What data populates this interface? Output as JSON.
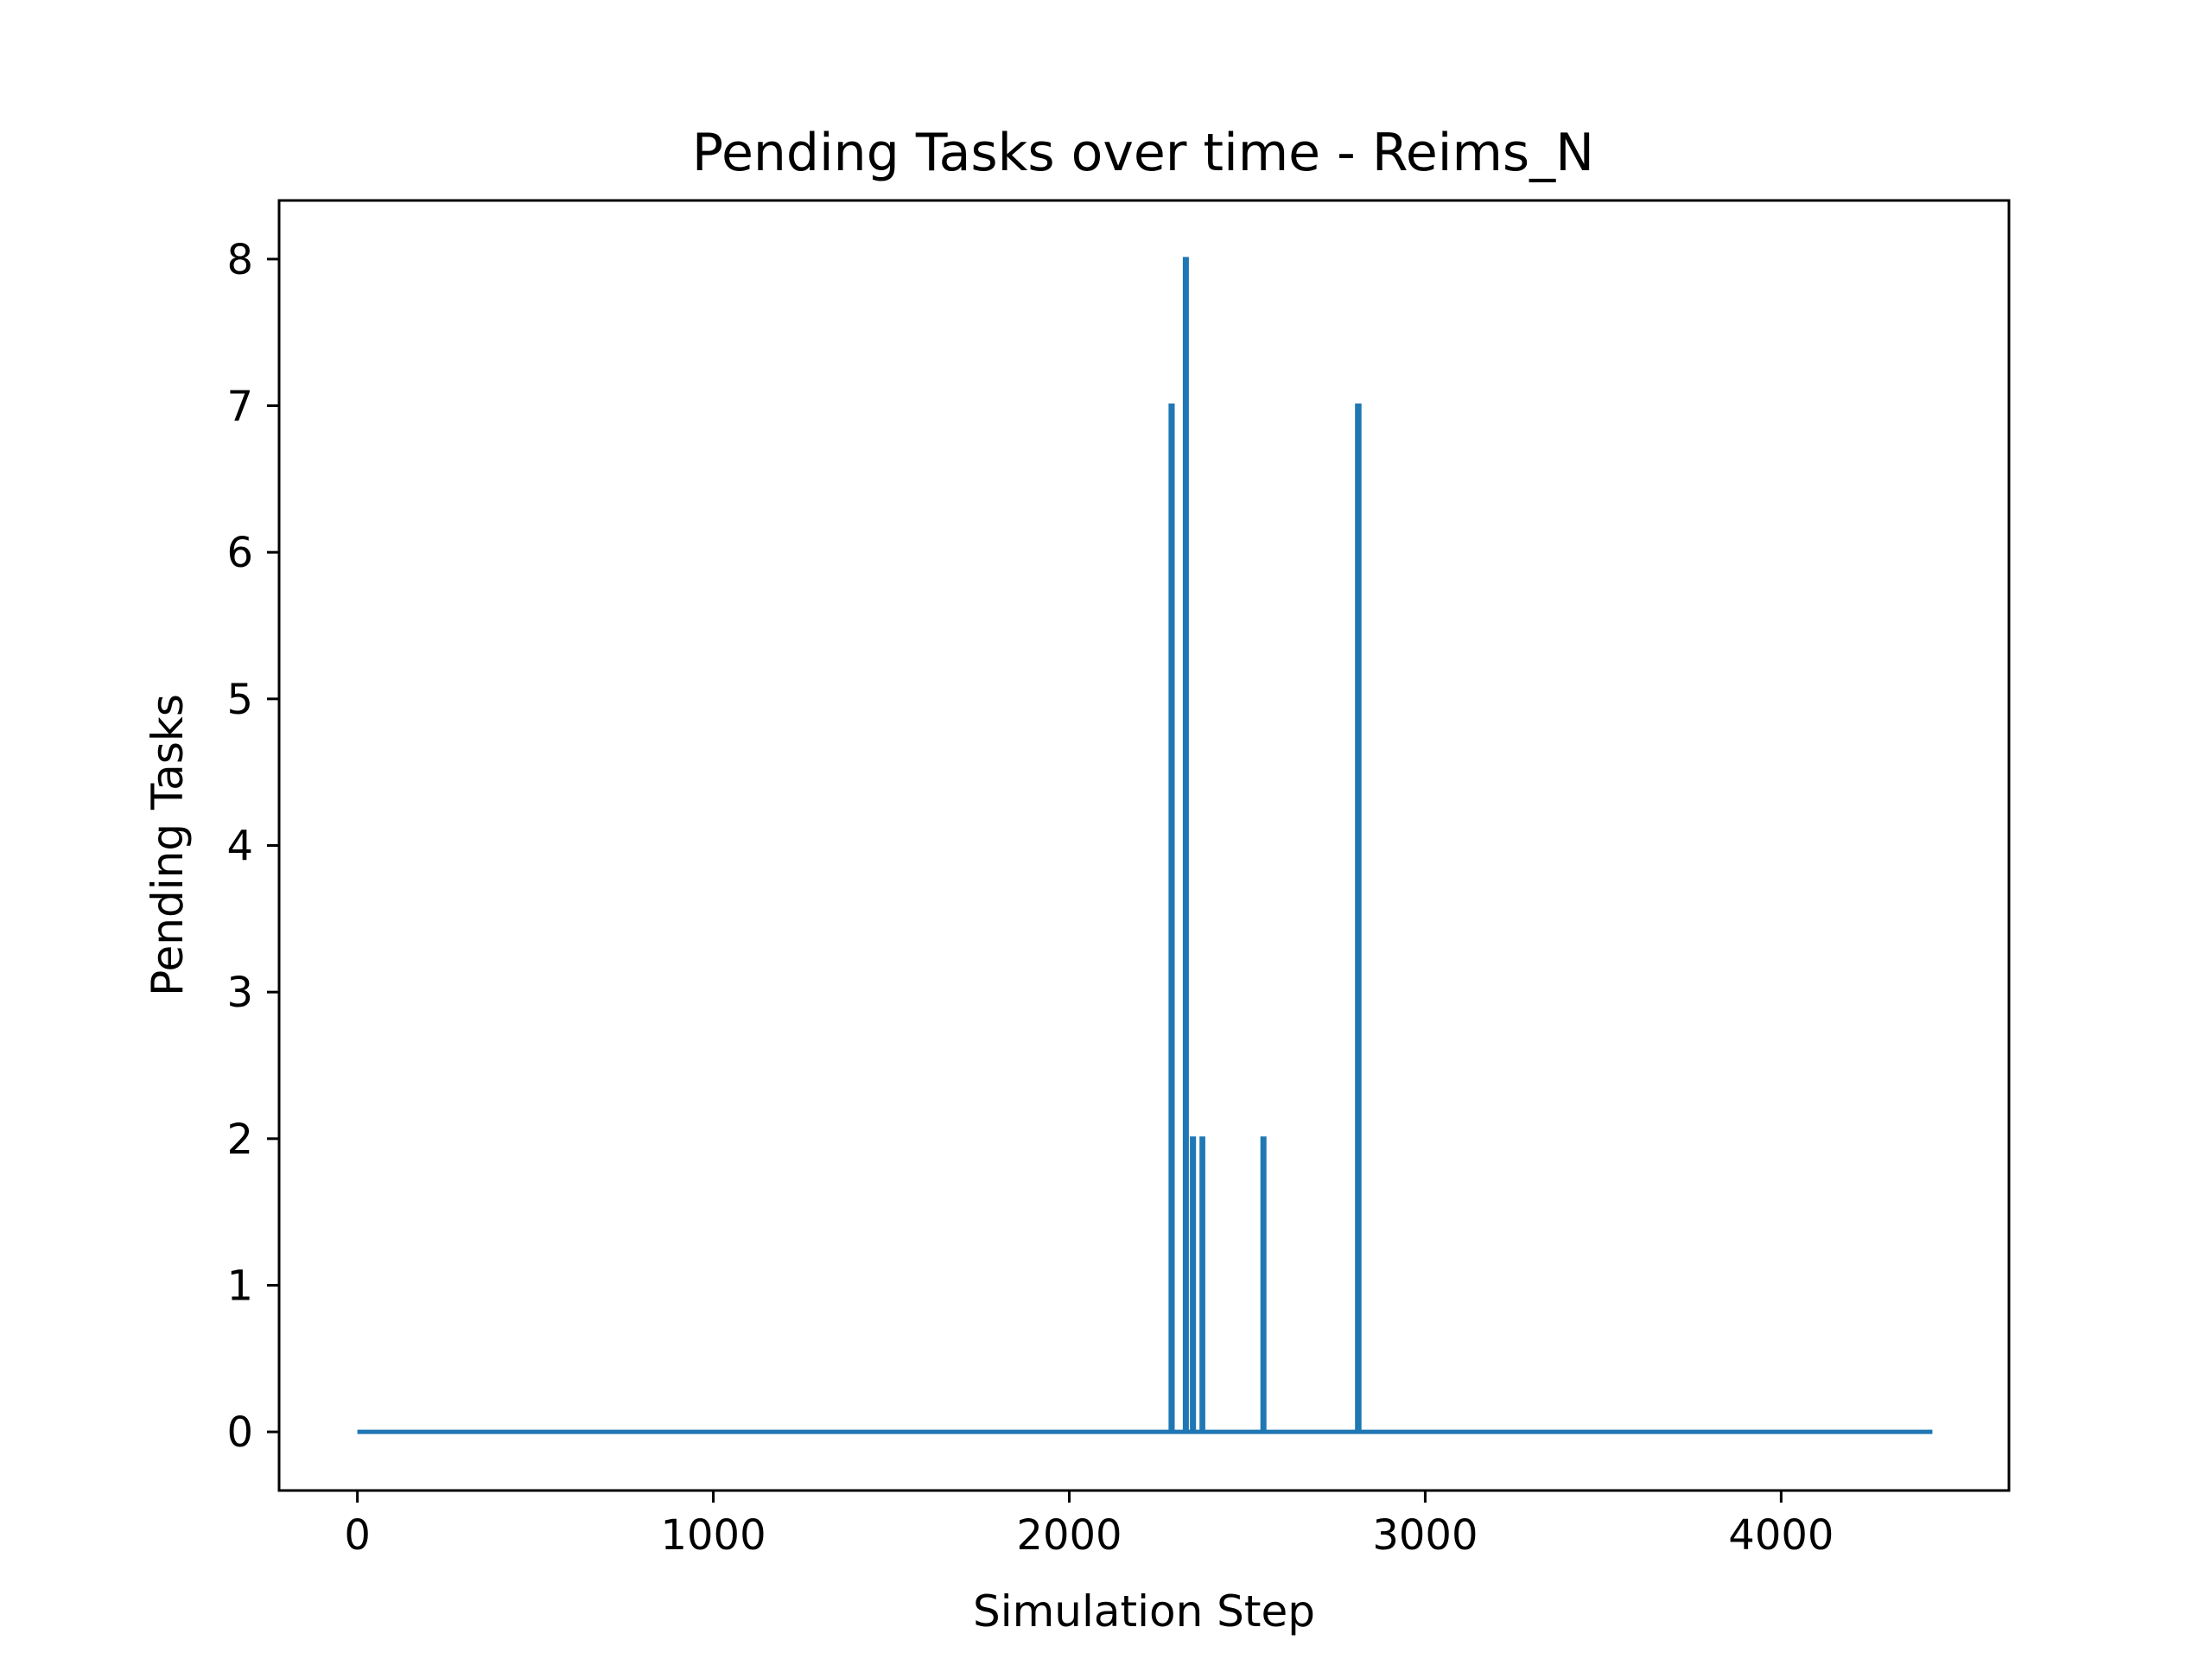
{
  "chart_data": {
    "type": "line",
    "title": "Pending Tasks over time - Reims_N",
    "xlabel": "Simulation Step",
    "ylabel": "Pending Tasks",
    "xlim": [
      -220,
      4640
    ],
    "ylim": [
      -0.4,
      8.4
    ],
    "xticks": [
      0,
      1000,
      2000,
      3000,
      4000
    ],
    "yticks": [
      0,
      1,
      2,
      3,
      4,
      5,
      6,
      7,
      8
    ],
    "grid": false,
    "line_color": "#1f77b4",
    "series": [
      {
        "points": [
          [
            0,
            0
          ],
          [
            2285,
            0
          ],
          [
            2285,
            7
          ],
          [
            2290,
            7
          ],
          [
            2290,
            0
          ],
          [
            2325,
            0
          ],
          [
            2325,
            8
          ],
          [
            2330,
            8
          ],
          [
            2330,
            0
          ],
          [
            2345,
            0
          ],
          [
            2345,
            2
          ],
          [
            2350,
            2
          ],
          [
            2350,
            0
          ],
          [
            2372,
            0
          ],
          [
            2372,
            2
          ],
          [
            2376,
            2
          ],
          [
            2376,
            0
          ],
          [
            2543,
            0
          ],
          [
            2543,
            2
          ],
          [
            2548,
            2
          ],
          [
            2548,
            0
          ],
          [
            2809,
            0
          ],
          [
            2809,
            7
          ],
          [
            2815,
            7
          ],
          [
            2815,
            0
          ],
          [
            4425,
            0
          ]
        ]
      }
    ]
  }
}
